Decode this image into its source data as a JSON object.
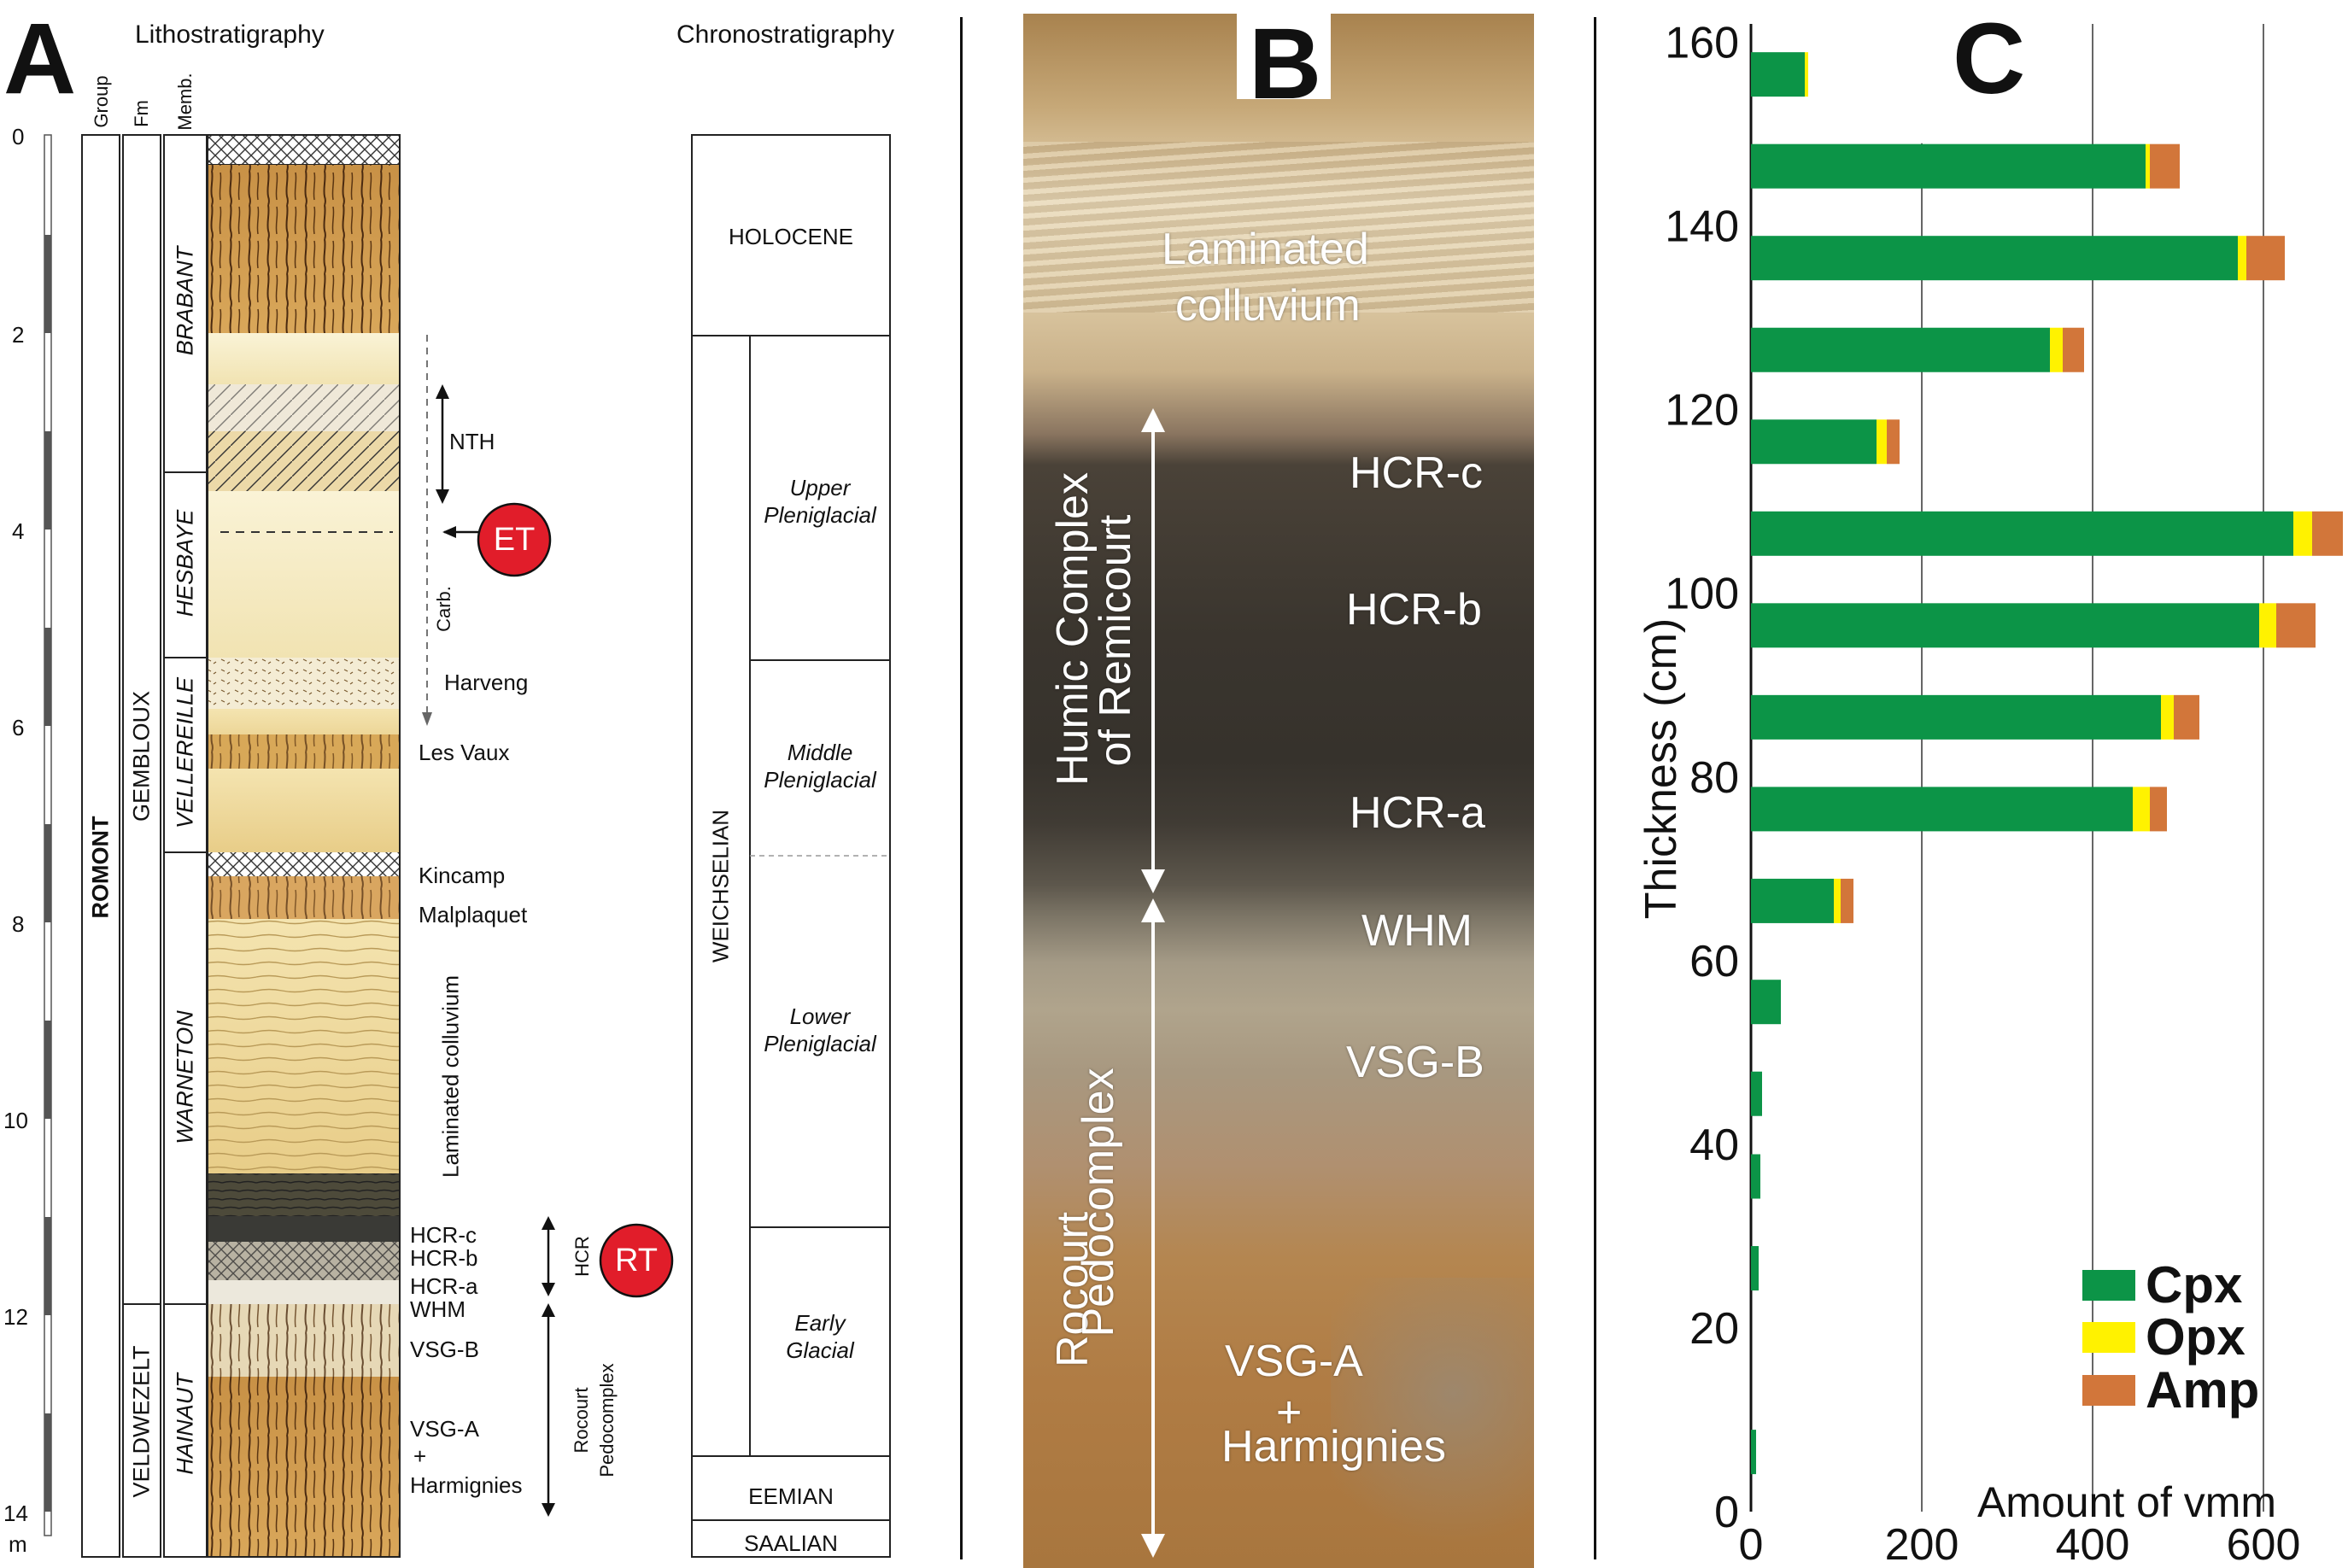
{
  "panelA": {
    "letter": "A",
    "litho_title": "Lithostratigraphy",
    "chrono_title": "Chronostratigraphy",
    "col_group": "Group",
    "col_fm": "Fm",
    "col_memb": "Memb.",
    "depth_ticks": [
      "0",
      "2",
      "4",
      "6",
      "8",
      "10",
      "12",
      "14"
    ],
    "depth_unit": "m",
    "group": "ROMONT",
    "formations": [
      "GEMBLOUX",
      "VELDWEZELT"
    ],
    "members": [
      "BRABANT",
      "HESBAYE",
      "VELLEREILLE",
      "WARNETON",
      "HAINAUT"
    ],
    "labels": {
      "nth": "NTH",
      "carb": "Carb.",
      "harveng": "Harveng",
      "les_vaux": "Les Vaux",
      "kincamp": "Kincamp",
      "malplaquet": "Malplaquet",
      "laminated": "Laminated colluvium",
      "hcr_c": "HCR-c",
      "hcr_b": "HCR-b",
      "hcr_a": "HCR-a",
      "whm": "WHM",
      "vsg_b": "VSG-B",
      "vsg_a": "VSG-A",
      "plus": "+",
      "harmignies": "Harmignies",
      "hcr": "HCR",
      "rocourt1": "Rocourt",
      "rocourt2": "Pedocomplex",
      "et": "ET",
      "rt": "RT"
    },
    "chrono": {
      "holocene": "HOLOCENE",
      "weichselian": "WEICHSELIAN",
      "upper1": "Upper",
      "upper2": "Pleniglacial",
      "middle1": "Middle",
      "middle2": "Pleniglacial",
      "lower1": "Lower",
      "lower2": "Pleniglacial",
      "early1": "Early",
      "early2": "Glacial",
      "eemian": "EEMIAN",
      "saalian": "SAALIAN"
    }
  },
  "panelB": {
    "letter": "B",
    "laminated1": "Laminated",
    "laminated2": "colluvium",
    "hcr_c": "HCR-c",
    "hcr_b": "HCR-b",
    "hcr_a": "HCR-a",
    "whm": "WHM",
    "vsg_b": "VSG-B",
    "vsg_a": "VSG-A",
    "plus": "+",
    "harmignies": "Harmignies",
    "humic1": "Humic Complex",
    "humic2": "of Remicourt",
    "rocourt1": "Rocourt",
    "rocourt2": "Pedocomplex"
  },
  "panelC": {
    "letter": "C"
  },
  "chart_data": {
    "type": "bar",
    "orientation": "horizontal-stacked",
    "title": "",
    "xlabel": "Amount of vmm",
    "ylabel": "Thickness (cm)",
    "xlim": [
      0,
      690
    ],
    "ylim": [
      0,
      162
    ],
    "xticks": [
      "0",
      "200",
      "400",
      "600"
    ],
    "yticks": [
      "0",
      "20",
      "40",
      "60",
      "80",
      "100",
      "120",
      "140",
      "160"
    ],
    "gridlines_x": [
      200,
      400,
      600
    ],
    "legend_position": "bottom-right",
    "colors": {
      "Cpx": "#0c9447",
      "Opx": "#fff200",
      "Amp": "#d2763a"
    },
    "series_names": [
      "Cpx",
      "Opx",
      "Amp"
    ],
    "bars": [
      {
        "y": 156.5,
        "Cpx": 63,
        "Opx": 4,
        "Amp": 0
      },
      {
        "y": 146.5,
        "Cpx": 462,
        "Opx": 5,
        "Amp": 35
      },
      {
        "y": 136.5,
        "Cpx": 570,
        "Opx": 10,
        "Amp": 45
      },
      {
        "y": 126.5,
        "Cpx": 350,
        "Opx": 15,
        "Amp": 25
      },
      {
        "y": 116.5,
        "Cpx": 147,
        "Opx": 12,
        "Amp": 15
      },
      {
        "y": 106.5,
        "Cpx": 635,
        "Opx": 22,
        "Amp": 36
      },
      {
        "y": 96.5,
        "Cpx": 595,
        "Opx": 20,
        "Amp": 46
      },
      {
        "y": 86.5,
        "Cpx": 480,
        "Opx": 15,
        "Amp": 30
      },
      {
        "y": 76.5,
        "Cpx": 447,
        "Opx": 20,
        "Amp": 20
      },
      {
        "y": 66.5,
        "Cpx": 97,
        "Opx": 8,
        "Amp": 15
      },
      {
        "y": 55.5,
        "Cpx": 35,
        "Opx": 0,
        "Amp": 0
      },
      {
        "y": 45.5,
        "Cpx": 13,
        "Opx": 0,
        "Amp": 0
      },
      {
        "y": 36.5,
        "Cpx": 11,
        "Opx": 0,
        "Amp": 0
      },
      {
        "y": 26.5,
        "Cpx": 9,
        "Opx": 0,
        "Amp": 0
      },
      {
        "y": 6.5,
        "Cpx": 6,
        "Opx": 0,
        "Amp": 0
      }
    ]
  }
}
